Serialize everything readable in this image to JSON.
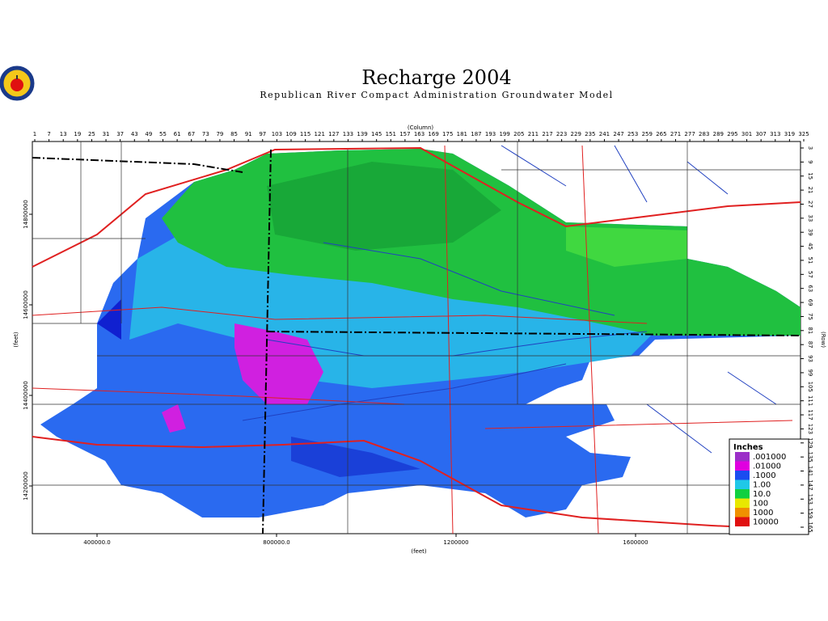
{
  "header": {
    "title": "Recharge 2004",
    "subtitle": "Republican River Compact Administration Groundwater Model"
  },
  "axes": {
    "column_label": "(Column)",
    "row_label": "(Row)",
    "x_feet_label": "(feet)",
    "y_feet_label": "(feet)",
    "column_ticks": [
      1,
      7,
      13,
      19,
      25,
      31,
      37,
      43,
      49,
      55,
      61,
      67,
      73,
      79,
      85,
      91,
      97,
      103,
      109,
      115,
      121,
      127,
      133,
      139,
      145,
      151,
      157,
      163,
      169,
      175,
      181,
      187,
      193,
      199,
      205,
      211,
      217,
      223,
      229,
      235,
      241,
      247,
      253,
      259,
      265,
      271,
      277,
      283,
      289,
      295,
      301,
      307,
      313,
      319,
      325
    ],
    "row_ticks": [
      3,
      9,
      15,
      21,
      27,
      33,
      39,
      45,
      51,
      57,
      63,
      69,
      75,
      81,
      87,
      93,
      99,
      105,
      111,
      117,
      123,
      129,
      135,
      141,
      147,
      153,
      159,
      165
    ],
    "x_feet_ticks": [
      {
        "value": 400000,
        "label": "400000.0"
      },
      {
        "value": 800000,
        "label": "800000.0"
      },
      {
        "value": 1200000,
        "label": "1200000"
      },
      {
        "value": 1600000,
        "label": "1600000"
      }
    ],
    "y_feet_ticks": [
      14800000,
      14600000,
      14400000,
      14200000
    ]
  },
  "legend": {
    "title": "Inches",
    "entries": [
      {
        "label": ".001000",
        "color": "#9b2fc8"
      },
      {
        "label": ".01000",
        "color": "#e000e0"
      },
      {
        "label": ".1000",
        "color": "#1a4cf0"
      },
      {
        "label": "1.00",
        "color": "#20c8e8"
      },
      {
        "label": "10.0",
        "color": "#10d040"
      },
      {
        "label": "100",
        "color": "#e8e800"
      },
      {
        "label": "1000",
        "color": "#f09000"
      },
      {
        "label": "10000",
        "color": "#e01010"
      }
    ]
  }
}
